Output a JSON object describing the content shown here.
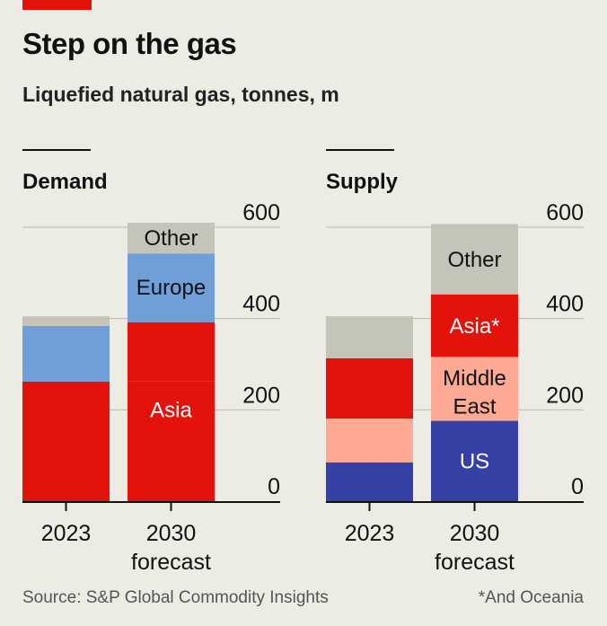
{
  "title": "Step on the gas",
  "subtitle": "Liquefied natural gas, tonnes, m",
  "source": "Source: S&P Global Commodity Insights",
  "footnote": "*And Oceania",
  "colors": {
    "asia": "#e3120b",
    "europe": "#6f9ed9",
    "other": "#c5c4b9",
    "middle_east": "#fda993",
    "us": "#3640a5",
    "axis": "#121212",
    "grid": "#b8b7b0"
  },
  "chart_data": [
    {
      "type": "bar",
      "stacked": true,
      "panel_title": "Demand",
      "categories": [
        "2023",
        "2030"
      ],
      "category_sublabels": [
        "",
        "forecast"
      ],
      "ylim": [
        0,
        600
      ],
      "yticks": [
        0,
        200,
        400,
        600
      ],
      "grid": true,
      "series": [
        {
          "name": "Asia",
          "color_key": "asia",
          "values": [
            262,
            262
          ]
        },
        {
          "name": "",
          "color_key": "asia",
          "values": [
            0,
            130
          ]
        },
        {
          "name": "Europe",
          "color_key": "europe",
          "values": [
            122,
            150
          ]
        },
        {
          "name": "Other",
          "color_key": "other",
          "values": [
            21,
            68
          ]
        }
      ],
      "labels": [
        {
          "text": "Asia",
          "series": 0,
          "category": 1,
          "y": 200,
          "color": "#ffffff"
        },
        {
          "text": "Europe",
          "series": 2,
          "category": 1,
          "y": 468,
          "color": "#121212"
        },
        {
          "text": "Other",
          "series": 3,
          "category": 1,
          "y": 576,
          "color": "#121212"
        }
      ]
    },
    {
      "type": "bar",
      "stacked": true,
      "panel_title": "Supply",
      "categories": [
        "2023",
        "2030"
      ],
      "category_sublabels": [
        "",
        "forecast"
      ],
      "ylim": [
        0,
        600
      ],
      "yticks": [
        0,
        200,
        400,
        600
      ],
      "grid": true,
      "series": [
        {
          "name": "US",
          "color_key": "us",
          "values": [
            85,
            176
          ]
        },
        {
          "name": "Middle East",
          "color_key": "middle_east",
          "values": [
            96,
            140
          ]
        },
        {
          "name": "Asia*",
          "color_key": "asia",
          "values": [
            132,
            137
          ]
        },
        {
          "name": "Other",
          "color_key": "other",
          "values": [
            92,
            154
          ]
        }
      ],
      "labels": [
        {
          "text": "US",
          "series": 0,
          "category": 1,
          "y": 88,
          "color": "#ffffff"
        },
        {
          "text": "Middle",
          "series": 1,
          "category": 1,
          "y": 270,
          "color": "#121212"
        },
        {
          "text": "East",
          "series": 1,
          "category": 1,
          "y": 208,
          "color": "#121212"
        },
        {
          "text": "Asia*",
          "series": 2,
          "category": 1,
          "y": 384,
          "color": "#ffffff"
        },
        {
          "text": "Other",
          "series": 3,
          "category": 1,
          "y": 529,
          "color": "#121212"
        }
      ]
    }
  ]
}
